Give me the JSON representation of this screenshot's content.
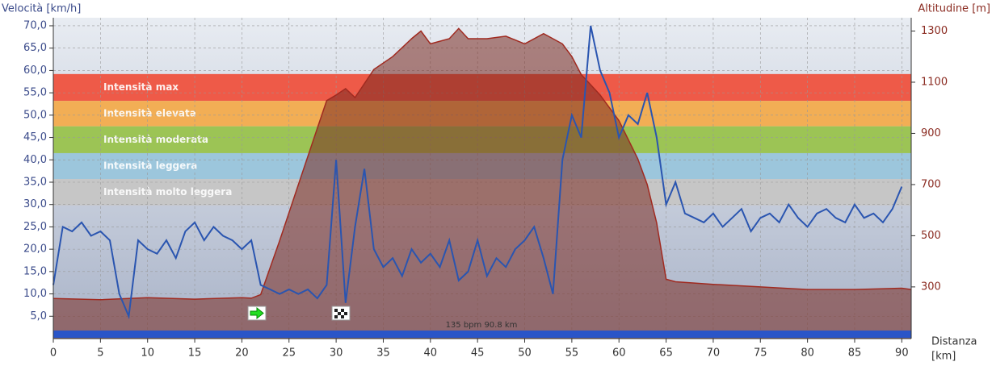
{
  "chart_data": {
    "type": "line",
    "ylabel": "Velocità [km/h]",
    "y2label": "Altitudine [m]",
    "xlabel": [
      "Distanza",
      "[km]"
    ],
    "annotation": "135 bpm 90.8 km",
    "xlim": [
      0,
      91
    ],
    "ylim": [
      0,
      71.8
    ],
    "y2lim": [
      98,
      1352
    ],
    "xticks": [
      0,
      5,
      10,
      15,
      20,
      25,
      30,
      35,
      40,
      45,
      50,
      55,
      60,
      65,
      70,
      75,
      80,
      85,
      90
    ],
    "yticks": [
      {
        "value": 5,
        "label": "5,0"
      },
      {
        "value": 10,
        "label": "10,0"
      },
      {
        "value": 15,
        "label": "15,0"
      },
      {
        "value": 20,
        "label": "20,0"
      },
      {
        "value": 25,
        "label": "25,0"
      },
      {
        "value": 30,
        "label": "30,0"
      },
      {
        "value": 35,
        "label": "35,0"
      },
      {
        "value": 40,
        "label": "40,0"
      },
      {
        "value": 45,
        "label": "45,0"
      },
      {
        "value": 50,
        "label": "50,0"
      },
      {
        "value": 55,
        "label": "55,0"
      },
      {
        "value": 60,
        "label": "60,0"
      },
      {
        "value": 65,
        "label": "65,0"
      },
      {
        "value": 70,
        "label": "70,0"
      }
    ],
    "y2ticks": [
      300,
      500,
      700,
      900,
      1100,
      1300
    ],
    "grid": true,
    "zones": [
      {
        "name": "Intensità max",
        "color": "#ee5a48",
        "from": 53.2,
        "to": 59.2
      },
      {
        "name": "Intensità elevata",
        "color": "#f2ae55",
        "from": 47.5,
        "to": 53.2
      },
      {
        "name": "Intensità moderata",
        "color": "#9cc455",
        "from": 41.5,
        "to": 47.5
      },
      {
        "name": "Intensità leggera",
        "color": "#9cc6dc",
        "from": 35.7,
        "to": 41.5
      },
      {
        "name": "Intensità molto leggera",
        "color": "#c6c6c6",
        "from": 29.8,
        "to": 35.7
      }
    ],
    "series": [
      {
        "name": "Altitudine",
        "axis": "y2",
        "color": "#a02a20",
        "x": [
          0,
          5,
          10,
          15,
          20,
          21,
          22,
          24,
          26,
          28,
          29,
          30,
          31,
          32,
          34,
          36,
          38,
          39,
          40,
          42,
          43,
          44,
          46,
          48,
          50,
          52,
          54,
          55,
          56,
          58,
          60,
          62,
          63,
          64,
          65,
          66,
          70,
          75,
          80,
          85,
          90,
          91
        ],
        "values": [
          255,
          250,
          258,
          252,
          258,
          256,
          270,
          480,
          700,
          920,
          1028,
          1050,
          1075,
          1040,
          1150,
          1200,
          1270,
          1300,
          1250,
          1270,
          1310,
          1270,
          1270,
          1280,
          1250,
          1290,
          1250,
          1200,
          1130,
          1050,
          950,
          800,
          700,
          550,
          330,
          320,
          310,
          300,
          290,
          290,
          295,
          290
        ]
      },
      {
        "name": "Velocità",
        "axis": "y",
        "color": "#2a55b0",
        "x": [
          0,
          1,
          2,
          3,
          4,
          5,
          6,
          7,
          8,
          9,
          10,
          11,
          12,
          13,
          14,
          15,
          16,
          17,
          18,
          19,
          20,
          21,
          22,
          23,
          24,
          25,
          26,
          27,
          28,
          29,
          30,
          31,
          32,
          33,
          34,
          35,
          36,
          37,
          38,
          39,
          40,
          41,
          42,
          43,
          44,
          45,
          46,
          47,
          48,
          49,
          50,
          51,
          52,
          53,
          54,
          55,
          56,
          57,
          58,
          59,
          60,
          61,
          62,
          63,
          64,
          65,
          66,
          67,
          68,
          69,
          70,
          71,
          72,
          73,
          74,
          75,
          76,
          77,
          78,
          79,
          80,
          81,
          82,
          83,
          84,
          85,
          86,
          87,
          88,
          89,
          90
        ],
        "values": [
          12,
          25,
          24,
          26,
          23,
          24,
          22,
          10,
          5,
          22,
          20,
          19,
          22,
          18,
          24,
          26,
          22,
          25,
          23,
          22,
          20,
          22,
          12,
          11,
          10,
          11,
          10,
          11,
          9,
          12,
          40,
          8,
          25,
          38,
          20,
          16,
          18,
          14,
          20,
          17,
          19,
          16,
          22,
          13,
          15,
          22,
          14,
          18,
          16,
          20,
          22,
          25,
          18,
          10,
          40,
          50,
          45,
          70,
          60,
          55,
          45,
          50,
          48,
          55,
          45,
          30,
          35,
          28,
          27,
          26,
          28,
          25,
          27,
          29,
          24,
          27,
          28,
          26,
          30,
          27,
          25,
          28,
          29,
          27,
          26,
          30,
          27,
          28,
          26,
          29,
          34
        ]
      }
    ]
  }
}
